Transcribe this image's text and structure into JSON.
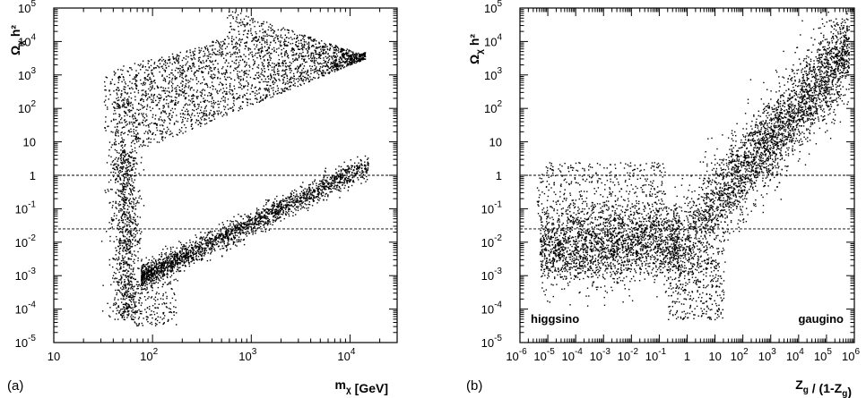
{
  "chart_data": [
    {
      "type": "scatter",
      "panel_label": "(a)",
      "xlabel": "m_χ [GeV]",
      "ylabel": "Ω_χ h²",
      "x_scale": "log",
      "y_scale": "log",
      "xlim": [
        10,
        30000
      ],
      "ylim": [
        1e-05,
        100000
      ],
      "x_ticks": [
        10,
        100,
        1000,
        10000
      ],
      "y_ticks": [
        1e-05,
        0.0001,
        0.001,
        0.01,
        0.1,
        1,
        10,
        100,
        1000,
        10000,
        100000
      ],
      "x_tick_labels": [
        {
          "base": "10",
          "exp": ""
        },
        {
          "base": "10",
          "exp": "2"
        },
        {
          "base": "10",
          "exp": "3"
        },
        {
          "base": "10",
          "exp": "4"
        }
      ],
      "y_tick_labels": [
        {
          "base": "10",
          "exp": "-5"
        },
        {
          "base": "10",
          "exp": "-4"
        },
        {
          "base": "10",
          "exp": "-3"
        },
        {
          "base": "10",
          "exp": "-2"
        },
        {
          "base": "10",
          "exp": "-1"
        },
        {
          "base": "1",
          "exp": ""
        },
        {
          "base": "10",
          "exp": ""
        },
        {
          "base": "10",
          "exp": "2"
        },
        {
          "base": "10",
          "exp": "3"
        },
        {
          "base": "10",
          "exp": "4"
        },
        {
          "base": "10",
          "exp": "5"
        }
      ],
      "reference_lines_y": [
        1,
        0.025
      ],
      "regions": [
        {
          "note": "upper wedge",
          "x_range": [
            40,
            15000
          ],
          "y_range": [
            10,
            30000
          ],
          "density": 0.55
        },
        {
          "note": "diagonal band",
          "x_range": [
            80,
            12000
          ],
          "y_range": [
            0.01,
            400
          ],
          "density": 0.25
        },
        {
          "note": "lower band",
          "x_range": [
            80,
            15000
          ],
          "y_range": [
            0.0005,
            3
          ],
          "density": 0.2
        }
      ]
    },
    {
      "type": "scatter",
      "panel_label": "(b)",
      "xlabel": "Z_g / (1-Z_g)",
      "ylabel": "Ω_χ h²",
      "x_scale": "log",
      "y_scale": "log",
      "xlim": [
        1e-06,
        1000000
      ],
      "ylim": [
        1e-05,
        100000
      ],
      "x_ticks": [
        1e-06,
        1e-05,
        0.0001,
        0.001,
        0.01,
        0.1,
        1,
        10,
        100,
        1000,
        10000,
        100000,
        1000000
      ],
      "y_ticks": [
        1e-05,
        0.0001,
        0.001,
        0.01,
        0.1,
        1,
        10,
        100,
        1000,
        10000,
        100000
      ],
      "x_tick_labels": [
        {
          "base": "10",
          "exp": "-6"
        },
        {
          "base": "10",
          "exp": "-5"
        },
        {
          "base": "10",
          "exp": "-4"
        },
        {
          "base": "10",
          "exp": "-3"
        },
        {
          "base": "10",
          "exp": "-2"
        },
        {
          "base": "10",
          "exp": "-1"
        },
        {
          "base": "1",
          "exp": ""
        },
        {
          "base": "10",
          "exp": ""
        },
        {
          "base": "10",
          "exp": "2"
        },
        {
          "base": "10",
          "exp": "3"
        },
        {
          "base": "10",
          "exp": "4"
        },
        {
          "base": "10",
          "exp": "5"
        },
        {
          "base": "10",
          "exp": "6"
        }
      ],
      "y_tick_labels": [
        {
          "base": "10",
          "exp": "-5"
        },
        {
          "base": "10",
          "exp": "-4"
        },
        {
          "base": "10",
          "exp": "-3"
        },
        {
          "base": "10",
          "exp": "-2"
        },
        {
          "base": "10",
          "exp": "-1"
        },
        {
          "base": "1",
          "exp": ""
        },
        {
          "base": "10",
          "exp": ""
        },
        {
          "base": "10",
          "exp": "2"
        },
        {
          "base": "10",
          "exp": "3"
        },
        {
          "base": "10",
          "exp": "4"
        },
        {
          "base": "10",
          "exp": "5"
        }
      ],
      "reference_lines_y": [
        1,
        0.025
      ],
      "annotations": [
        "higgsino",
        "gaugino"
      ],
      "regions": [
        {
          "note": "higgsino cluster",
          "x_range": [
            1e-05,
            0.5
          ],
          "y_range": [
            0.0003,
            3
          ],
          "density": 0.4
        },
        {
          "note": "rising band",
          "x_range": [
            0.1,
            500000
          ],
          "y_range": [
            0.003,
            100000
          ],
          "density": 0.6
        }
      ]
    }
  ]
}
